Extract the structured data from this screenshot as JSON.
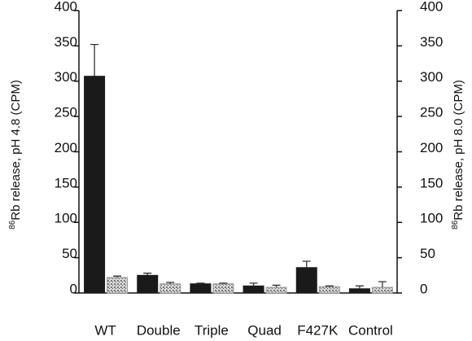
{
  "chart_data": {
    "type": "bar",
    "y_label_sup": "86",
    "y_label": "Rb release,  pH 4.8 (CPM)",
    "y2_label_sup": "86",
    "y2_label": "Rb release, pH 8.0 (CPM)",
    "categories": [
      "WT",
      "Double",
      "Triple",
      "Quad",
      "F427K",
      "Control"
    ],
    "series": [
      {
        "color": "#1a1a1a",
        "values": [
          307,
          25,
          13,
          10,
          36,
          6
        ],
        "errors": [
          45,
          3,
          1,
          4,
          9,
          4
        ]
      },
      {
        "color": "#9a9a9a",
        "hatched": true,
        "axis": "y2",
        "values": [
          22,
          13,
          13,
          8,
          9,
          8
        ],
        "errors": [
          2,
          2,
          1,
          3,
          1,
          8
        ]
      }
    ],
    "ylim": [
      0,
      400
    ],
    "yticks": [
      0,
      50,
      100,
      150,
      200,
      250,
      300,
      350,
      400
    ],
    "y2lim": [
      0,
      400
    ],
    "y2ticks": [
      0,
      50,
      100,
      150,
      200,
      250,
      300,
      350,
      400
    ]
  }
}
